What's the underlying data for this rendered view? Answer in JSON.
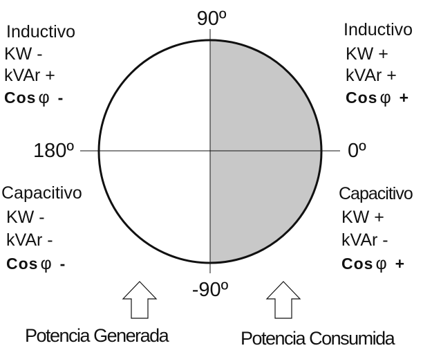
{
  "angles": {
    "top": "90º",
    "left": "180º",
    "right": "0º",
    "bottom": "-90º"
  },
  "quadrants": {
    "top_left": {
      "mode": "Inductivo",
      "kw": "KW -",
      "kvar": "kVAr +",
      "cos_label": "Cos",
      "phi": "φ",
      "cos_sign": "-"
    },
    "top_right": {
      "mode": "Inductivo",
      "kw": "KW +",
      "kvar": "kVAr +",
      "cos_label": "Cos",
      "phi": "φ",
      "cos_sign": "+"
    },
    "bottom_left": {
      "mode": "Capacitivo",
      "kw": "KW -",
      "kvar": "kVAr -",
      "cos_label": "Cos",
      "phi": "φ",
      "cos_sign": "-"
    },
    "bottom_right": {
      "mode": "Capacitivo",
      "kw": "KW +",
      "kvar": "kVAr -",
      "cos_label": "Cos",
      "phi": "φ",
      "cos_sign": "+"
    }
  },
  "footer": {
    "left": "Potencia Generada",
    "right": "Potencia Consumida"
  },
  "colors": {
    "shaded_half": "#c8c8c8",
    "line": "#111111",
    "background": "#ffffff"
  }
}
